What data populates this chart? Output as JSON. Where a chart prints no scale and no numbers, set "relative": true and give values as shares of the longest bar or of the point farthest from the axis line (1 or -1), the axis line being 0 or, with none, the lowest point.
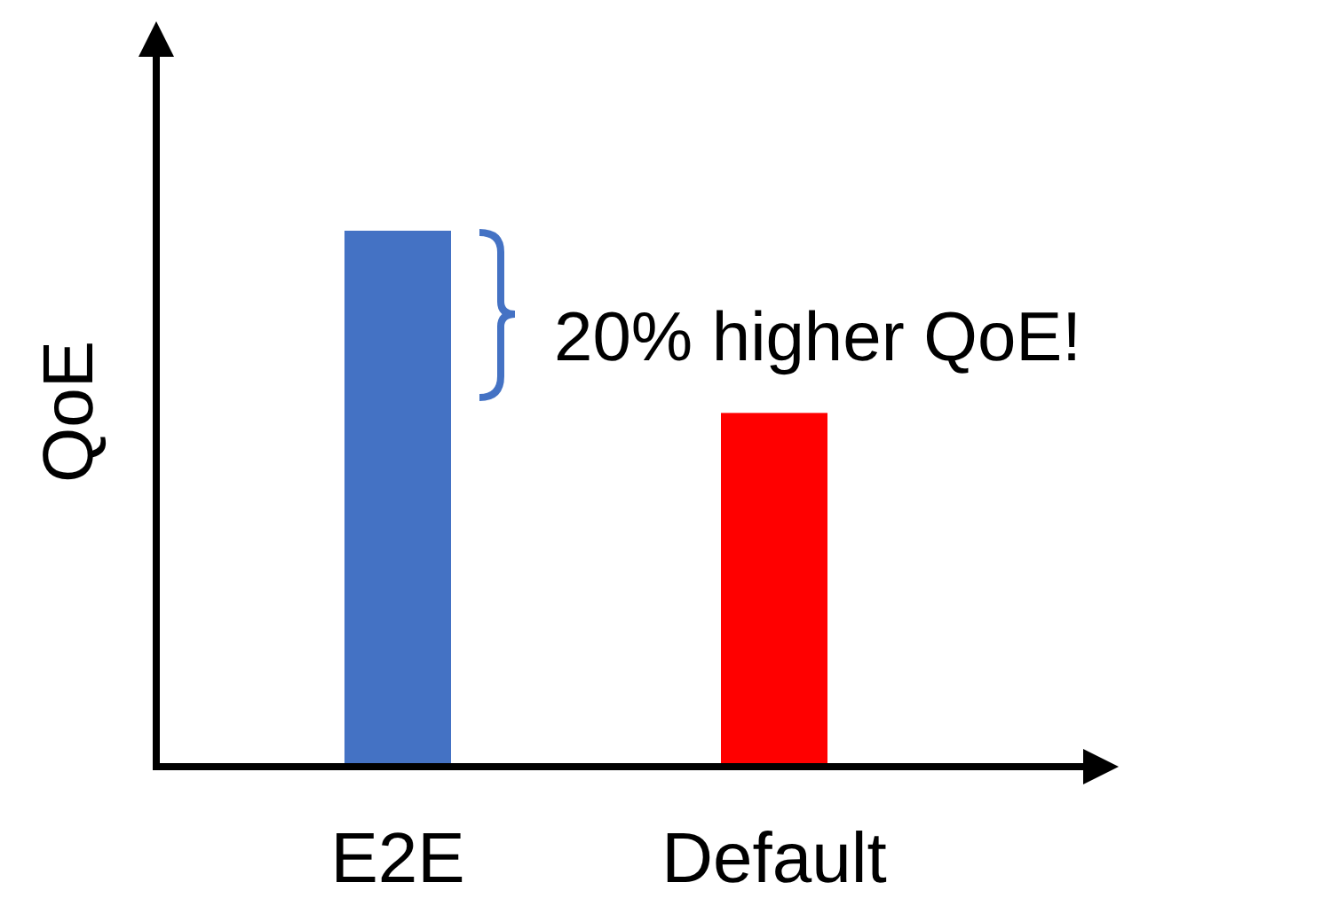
{
  "chart_data": {
    "type": "bar",
    "relative": true,
    "ylabel": "QoE",
    "categories": [
      "E2E",
      "Default"
    ],
    "values": [
      1,
      0.66
    ],
    "colors": [
      "#4472c4",
      "#ff0000"
    ],
    "annotations": [
      "20% higher QoE!"
    ]
  }
}
